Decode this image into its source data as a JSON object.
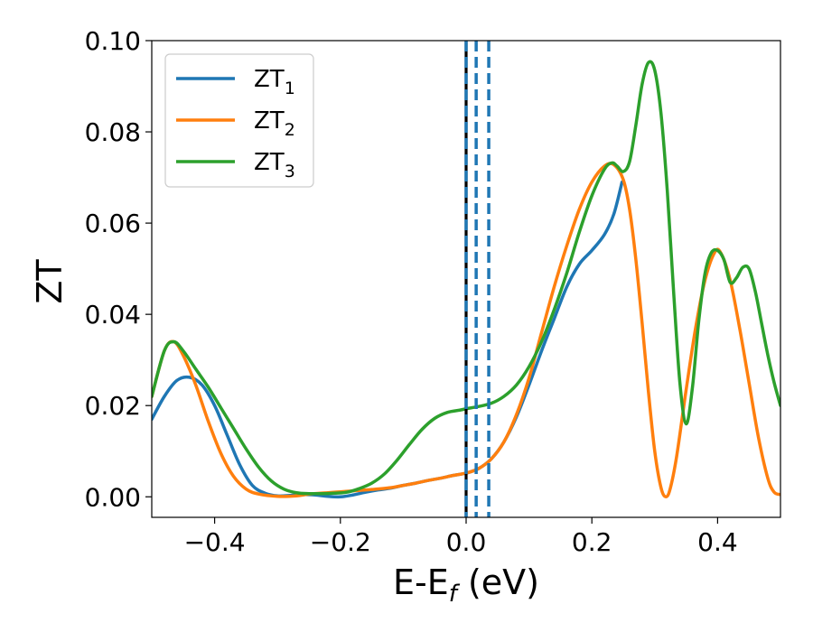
{
  "chart_data": {
    "type": "line",
    "title": "",
    "xlabel": "E-E",
    "xlabel_sub": "f",
    "xlabel_unit": " (eV)",
    "ylabel": "ZT",
    "xlim": [
      -0.5,
      0.5
    ],
    "ylim": [
      -0.0045,
      0.1
    ],
    "xticks": [
      -0.4,
      -0.2,
      0.0,
      0.2,
      0.4
    ],
    "xtick_labels": [
      "−0.4",
      "−0.2",
      "0.0",
      "0.2",
      "0.4"
    ],
    "yticks": [
      0.0,
      0.02,
      0.04,
      0.06,
      0.08,
      0.1
    ],
    "ytick_labels": [
      "0.00",
      "0.02",
      "0.04",
      "0.06",
      "0.08",
      "0.10"
    ],
    "grid": false,
    "legend_position": "upper-left",
    "vlines": [
      {
        "x": 0.0,
        "color": "#000000",
        "style": "solid"
      },
      {
        "x": 0.0,
        "color": "#1f77b4",
        "style": "dashed"
      },
      {
        "x": 0.016,
        "color": "#1f77b4",
        "style": "dashed"
      },
      {
        "x": 0.036,
        "color": "#1f77b4",
        "style": "dashed"
      }
    ],
    "series": [
      {
        "name": "ZT",
        "name_sub": "1",
        "color": "#1f77b4",
        "points": [
          [
            -0.5,
            0.017
          ],
          [
            -0.48,
            0.022
          ],
          [
            -0.46,
            0.0255
          ],
          [
            -0.44,
            0.0262
          ],
          [
            -0.42,
            0.0245
          ],
          [
            -0.4,
            0.02
          ],
          [
            -0.38,
            0.0135
          ],
          [
            -0.36,
            0.007
          ],
          [
            -0.34,
            0.0025
          ],
          [
            -0.32,
            0.0008
          ],
          [
            -0.3,
            0.0002
          ],
          [
            -0.28,
            0.0003
          ],
          [
            -0.26,
            0.0005
          ],
          [
            -0.24,
            0.0004
          ],
          [
            -0.22,
            0.0001
          ],
          [
            -0.2,
            0.0
          ],
          [
            -0.18,
            0.0004
          ],
          [
            -0.16,
            0.001
          ],
          [
            -0.14,
            0.0015
          ],
          [
            -0.12,
            0.0019
          ],
          [
            -0.1,
            0.0025
          ],
          [
            -0.08,
            0.003
          ],
          [
            -0.06,
            0.0036
          ],
          [
            -0.04,
            0.0041
          ],
          [
            -0.02,
            0.0047
          ],
          [
            0.0,
            0.0052
          ],
          [
            0.02,
            0.0062
          ],
          [
            0.04,
            0.0083
          ],
          [
            0.06,
            0.012
          ],
          [
            0.08,
            0.0175
          ],
          [
            0.1,
            0.0245
          ],
          [
            0.12,
            0.032
          ],
          [
            0.14,
            0.039
          ],
          [
            0.16,
            0.046
          ],
          [
            0.18,
            0.051
          ],
          [
            0.2,
            0.054
          ],
          [
            0.22,
            0.0575
          ],
          [
            0.235,
            0.062
          ],
          [
            0.248,
            0.069
          ]
        ]
      },
      {
        "name": "ZT",
        "name_sub": "2",
        "color": "#ff7f0e",
        "points": [
          [
            -0.5,
            0.022
          ],
          [
            -0.48,
            0.032
          ],
          [
            -0.465,
            0.034
          ],
          [
            -0.45,
            0.031
          ],
          [
            -0.43,
            0.0245
          ],
          [
            -0.41,
            0.0165
          ],
          [
            -0.39,
            0.0095
          ],
          [
            -0.37,
            0.0045
          ],
          [
            -0.35,
            0.0017
          ],
          [
            -0.33,
            0.0006
          ],
          [
            -0.3,
            0.0001
          ],
          [
            -0.27,
            0.0002
          ],
          [
            -0.25,
            0.0006
          ],
          [
            -0.22,
            0.0009
          ],
          [
            -0.2,
            0.0011
          ],
          [
            -0.18,
            0.0013
          ],
          [
            -0.15,
            0.0016
          ],
          [
            -0.12,
            0.002
          ],
          [
            -0.1,
            0.0025
          ],
          [
            -0.08,
            0.003
          ],
          [
            -0.06,
            0.0036
          ],
          [
            -0.04,
            0.0041
          ],
          [
            -0.02,
            0.0047
          ],
          [
            0.0,
            0.0052
          ],
          [
            0.02,
            0.0062
          ],
          [
            0.04,
            0.0083
          ],
          [
            0.06,
            0.012
          ],
          [
            0.08,
            0.018
          ],
          [
            0.1,
            0.026
          ],
          [
            0.12,
            0.036
          ],
          [
            0.14,
            0.046
          ],
          [
            0.16,
            0.055
          ],
          [
            0.18,
            0.063
          ],
          [
            0.2,
            0.069
          ],
          [
            0.22,
            0.0725
          ],
          [
            0.235,
            0.0728
          ],
          [
            0.25,
            0.0695
          ],
          [
            0.26,
            0.063
          ],
          [
            0.27,
            0.052
          ],
          [
            0.28,
            0.038
          ],
          [
            0.29,
            0.023
          ],
          [
            0.3,
            0.01
          ],
          [
            0.31,
            0.002
          ],
          [
            0.318,
            0.0
          ],
          [
            0.325,
            0.002
          ],
          [
            0.335,
            0.009
          ],
          [
            0.35,
            0.0235
          ],
          [
            0.365,
            0.037
          ],
          [
            0.38,
            0.0475
          ],
          [
            0.395,
            0.0535
          ],
          [
            0.405,
            0.0535
          ],
          [
            0.42,
            0.0475
          ],
          [
            0.435,
            0.037
          ],
          [
            0.45,
            0.025
          ],
          [
            0.465,
            0.013
          ],
          [
            0.48,
            0.004
          ],
          [
            0.49,
            0.001
          ],
          [
            0.5,
            0.0005
          ]
        ]
      },
      {
        "name": "ZT",
        "name_sub": "3",
        "color": "#2ca02c",
        "points": [
          [
            -0.5,
            0.022
          ],
          [
            -0.48,
            0.032
          ],
          [
            -0.465,
            0.034
          ],
          [
            -0.45,
            0.032
          ],
          [
            -0.43,
            0.028
          ],
          [
            -0.41,
            0.024
          ],
          [
            -0.39,
            0.0195
          ],
          [
            -0.37,
            0.015
          ],
          [
            -0.35,
            0.0105
          ],
          [
            -0.33,
            0.0065
          ],
          [
            -0.31,
            0.0035
          ],
          [
            -0.29,
            0.0017
          ],
          [
            -0.27,
            0.0009
          ],
          [
            -0.25,
            0.0007
          ],
          [
            -0.23,
            0.0007
          ],
          [
            -0.21,
            0.0008
          ],
          [
            -0.19,
            0.001
          ],
          [
            -0.17,
            0.0018
          ],
          [
            -0.15,
            0.003
          ],
          [
            -0.13,
            0.005
          ],
          [
            -0.11,
            0.008
          ],
          [
            -0.09,
            0.0115
          ],
          [
            -0.07,
            0.0148
          ],
          [
            -0.05,
            0.0172
          ],
          [
            -0.03,
            0.0185
          ],
          [
            -0.01,
            0.019
          ],
          [
            0.0,
            0.0193
          ],
          [
            0.02,
            0.0198
          ],
          [
            0.04,
            0.0205
          ],
          [
            0.06,
            0.022
          ],
          [
            0.08,
            0.0245
          ],
          [
            0.1,
            0.0285
          ],
          [
            0.12,
            0.034
          ],
          [
            0.14,
            0.041
          ],
          [
            0.16,
            0.049
          ],
          [
            0.18,
            0.058
          ],
          [
            0.2,
            0.066
          ],
          [
            0.22,
            0.0718
          ],
          [
            0.232,
            0.0732
          ],
          [
            0.24,
            0.0725
          ],
          [
            0.25,
            0.0713
          ],
          [
            0.26,
            0.0735
          ],
          [
            0.27,
            0.0815
          ],
          [
            0.28,
            0.0905
          ],
          [
            0.29,
            0.0952
          ],
          [
            0.3,
            0.0935
          ],
          [
            0.31,
            0.084
          ],
          [
            0.32,
            0.067
          ],
          [
            0.33,
            0.045
          ],
          [
            0.34,
            0.025
          ],
          [
            0.35,
            0.016
          ],
          [
            0.36,
            0.024
          ],
          [
            0.37,
            0.0385
          ],
          [
            0.38,
            0.049
          ],
          [
            0.39,
            0.0535
          ],
          [
            0.4,
            0.054
          ],
          [
            0.41,
            0.052
          ],
          [
            0.42,
            0.047
          ],
          [
            0.43,
            0.048
          ],
          [
            0.44,
            0.0503
          ],
          [
            0.45,
            0.05
          ],
          [
            0.46,
            0.045
          ],
          [
            0.47,
            0.038
          ],
          [
            0.48,
            0.031
          ],
          [
            0.49,
            0.025
          ],
          [
            0.5,
            0.02
          ]
        ]
      }
    ]
  }
}
